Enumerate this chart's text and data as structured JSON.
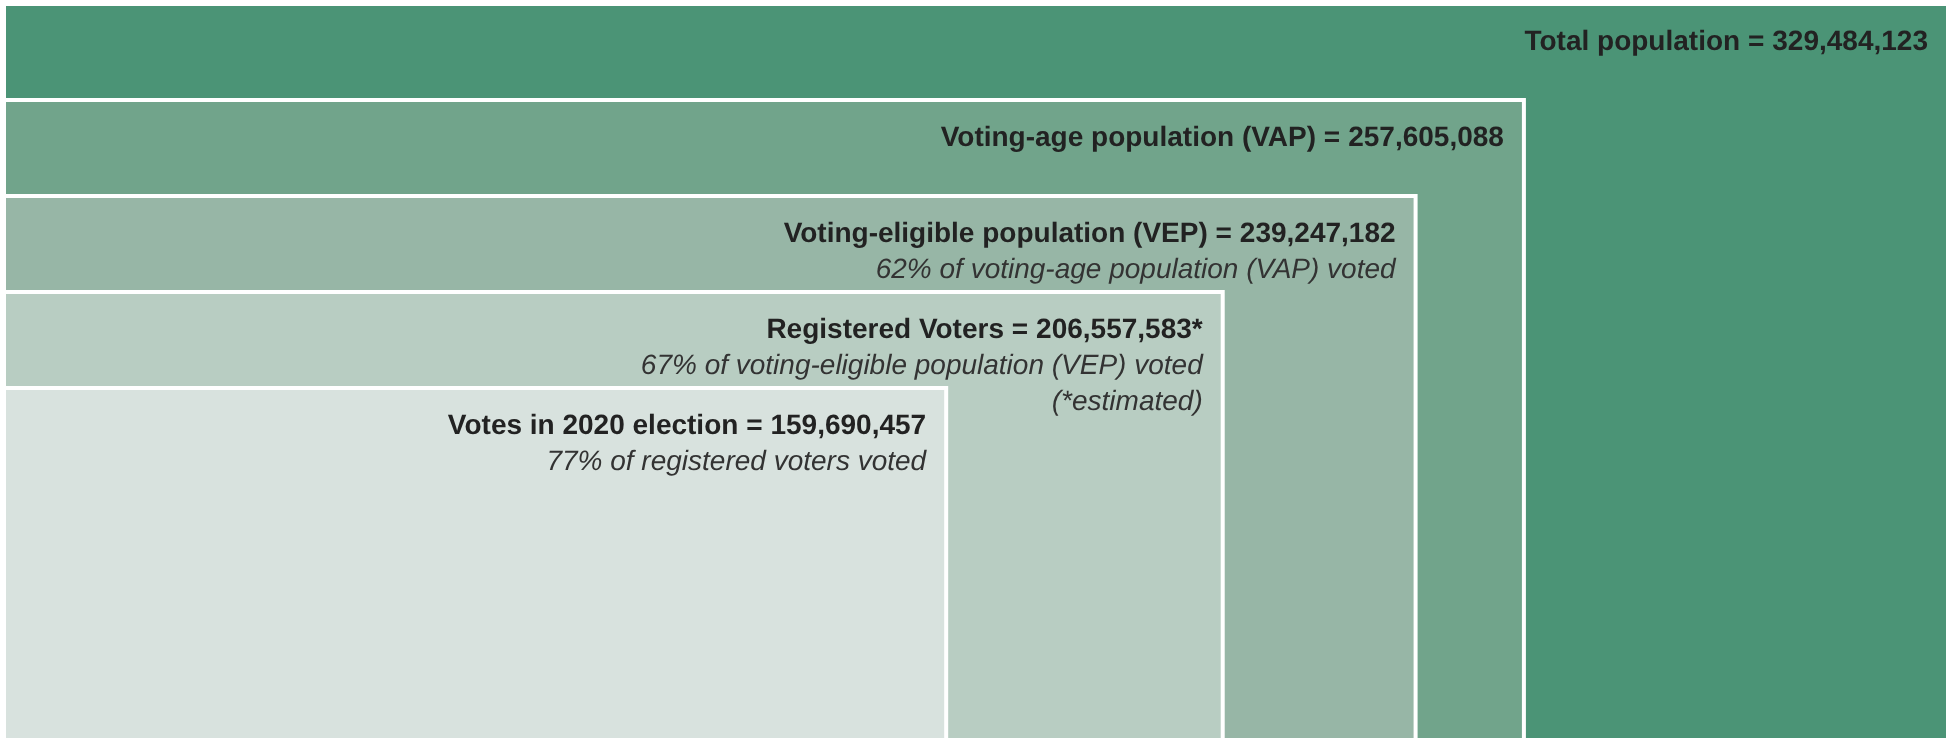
{
  "chart_data": {
    "type": "other",
    "categories": [
      "Total population =",
      "Voting-age population (VAP) =",
      "Voting-eligible population (VEP) =",
      "Registered Voters =",
      "Votes in 2020 election ="
    ],
    "values": [
      329484123,
      257605088,
      239247182,
      206557583,
      159690457
    ],
    "value_labels": [
      "329,484,123",
      "257,605,088",
      "239,247,182",
      "206,557,583*",
      "159,690,457"
    ],
    "colors": [
      "#4b9476",
      "#71a48b",
      "#97b6a6",
      "#b8cdc2",
      "#d8e2de"
    ],
    "annotations": [
      {
        "text": "62% of voting-age population (VAP) voted",
        "x": "Voting-eligible population (VEP) ="
      },
      {
        "text": "67% of voting-eligible population (VEP) voted",
        "x": "Registered Voters ="
      },
      {
        "text": "(*estimated)",
        "x": "Registered Voters ="
      },
      {
        "text": "77% of registered voters voted",
        "x": "Votes in 2020 election ="
      }
    ]
  }
}
